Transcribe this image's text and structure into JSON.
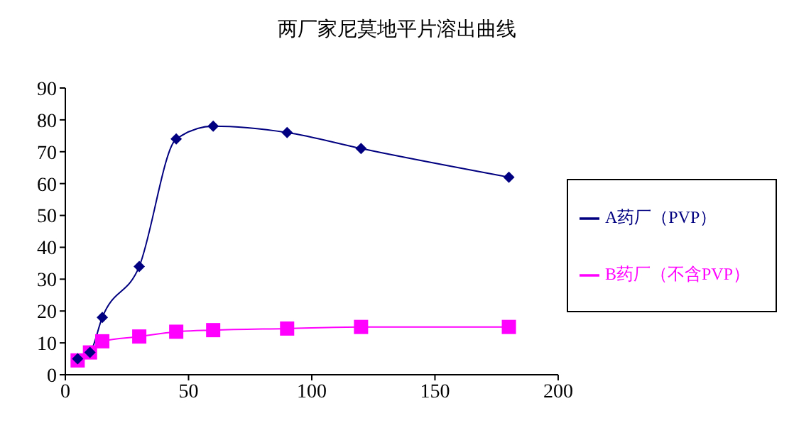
{
  "chart_data": {
    "type": "line",
    "title": "两厂家尼莫地平片溶出曲线",
    "x": [
      5,
      10,
      15,
      30,
      45,
      60,
      90,
      120,
      180
    ],
    "series": [
      {
        "name": "A药厂（PVP）",
        "color": "#000080",
        "marker": "diamond",
        "values": [
          5,
          7,
          18,
          34,
          74,
          78,
          76,
          71,
          62
        ]
      },
      {
        "name": "B药厂（不含PVP）",
        "color": "#ff00ff",
        "marker": "square",
        "values": [
          4.5,
          7,
          10.5,
          12,
          13.5,
          14,
          14.5,
          15,
          15
        ]
      }
    ],
    "xlim": [
      0,
      200
    ],
    "xticks": [
      0,
      50,
      100,
      150,
      200
    ],
    "ylim": [
      0,
      90
    ],
    "yticks": [
      0,
      10,
      20,
      30,
      40,
      50,
      60,
      70,
      80,
      90
    ],
    "grid": false,
    "legend": "right"
  }
}
